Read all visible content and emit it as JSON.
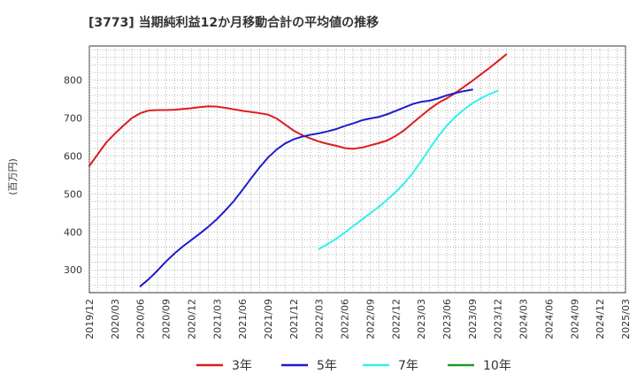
{
  "chart_data": {
    "type": "line",
    "title": "[3773]  当期純利益12か月移動合計の平均値の推移",
    "ylabel": "(百万円)",
    "xlabel": "",
    "ylim": [
      240,
      890
    ],
    "yticks": [
      300,
      400,
      500,
      600,
      700,
      800
    ],
    "grid": true,
    "legend_position": "bottom",
    "x_tick_labels": [
      "2019/12",
      "2020/03",
      "2020/06",
      "2020/09",
      "2020/12",
      "2021/03",
      "2021/06",
      "2021/09",
      "2021/12",
      "2022/03",
      "2022/06",
      "2022/09",
      "2022/12",
      "2023/03",
      "2023/06",
      "2023/09",
      "2023/12",
      "2024/03",
      "2024/06",
      "2024/09",
      "2024/12",
      "2025/03"
    ],
    "series": [
      {
        "name": "3年",
        "color": "#dd1c1c",
        "start_index": 0,
        "values": [
          574,
          605,
          636,
          659,
          680,
          700,
          713,
          720,
          721,
          721,
          722,
          724,
          726,
          729,
          731,
          730,
          727,
          723,
          719,
          716,
          713,
          709,
          699,
          683,
          667,
          655,
          646,
          638,
          632,
          627,
          621,
          619,
          622,
          628,
          634,
          641,
          653,
          668,
          687,
          706,
          724,
          740,
          752,
          766,
          782,
          798,
          815,
          832,
          850,
          868
        ]
      },
      {
        "name": "5年",
        "color": "#1c1ccc",
        "start_index": 6,
        "values": [
          257,
          276,
          298,
          322,
          343,
          362,
          379,
          396,
          414,
          434,
          457,
          482,
          511,
          541,
          570,
          596,
          617,
          633,
          644,
          651,
          656,
          660,
          665,
          671,
          679,
          686,
          694,
          699,
          703,
          710,
          719,
          728,
          737,
          743,
          746,
          752,
          760,
          766,
          771,
          775
        ]
      },
      {
        "name": "7年",
        "color": "#30f0f0",
        "start_index": 27,
        "values": [
          355,
          368,
          382,
          398,
          415,
          432,
          449,
          466,
          485,
          505,
          528,
          555,
          587,
          620,
          652,
          680,
          703,
          722,
          739,
          752,
          763,
          772
        ]
      },
      {
        "name": "10年",
        "color": "#229922",
        "start_index": 0,
        "values": []
      }
    ]
  }
}
